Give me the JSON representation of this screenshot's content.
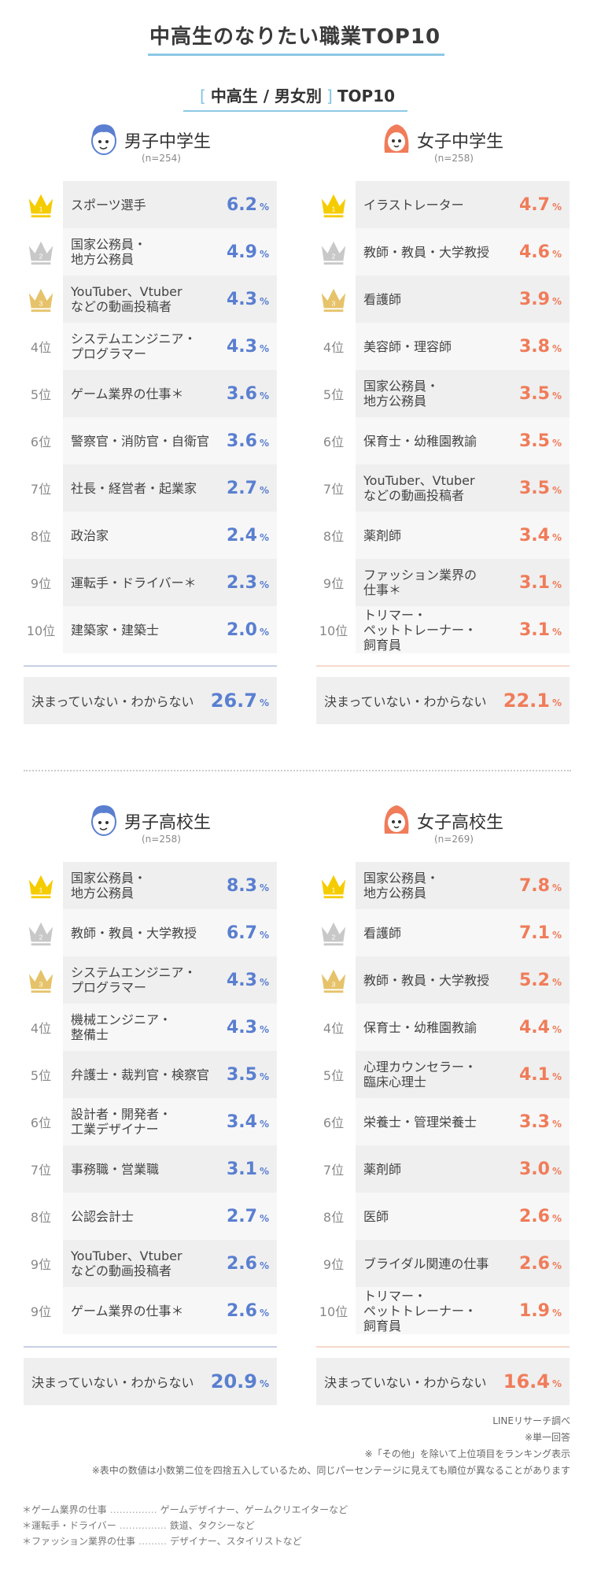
{
  "title": "中高生のなりたい職業TOP10",
  "subtitle": {
    "bracket_open": "[",
    "text": "中高生 / 男女別",
    "bracket_close": "]",
    "suffix": "TOP10"
  },
  "colors": {
    "boys": "#5a7fd0",
    "girls": "#f07c5a",
    "boys_divider": "#c8cfe6",
    "girls_divider": "#f6d9cc",
    "gold": "#f5cc00",
    "silver": "#c8c8c8",
    "bronze": "#e6c36a"
  },
  "sections": [
    {
      "title": "男子中学生",
      "n": "(n=254)",
      "gender": "boys",
      "rows": [
        {
          "rank": "1",
          "label": "スポーツ選手",
          "value": "6.2"
        },
        {
          "rank": "2",
          "label": "国家公務員・\n地方公務員",
          "value": "4.9"
        },
        {
          "rank": "3",
          "label": "YouTuber、Vtuber\nなどの動画投稿者",
          "value": "4.3"
        },
        {
          "rank": "4位",
          "label": "システムエンジニア・\nプログラマー",
          "value": "4.3"
        },
        {
          "rank": "5位",
          "label": "ゲーム業界の仕事＊",
          "value": "3.6"
        },
        {
          "rank": "6位",
          "label": "警察官・消防官・自衛官",
          "value": "3.6"
        },
        {
          "rank": "7位",
          "label": "社長・経営者・起業家",
          "value": "2.7"
        },
        {
          "rank": "8位",
          "label": "政治家",
          "value": "2.4"
        },
        {
          "rank": "9位",
          "label": "運転手・ドライバー＊",
          "value": "2.3"
        },
        {
          "rank": "10位",
          "label": "建築家・建築士",
          "value": "2.0"
        }
      ],
      "summary": {
        "label": "決まっていない・わからない",
        "value": "26.7"
      }
    },
    {
      "title": "女子中学生",
      "n": "(n=258)",
      "gender": "girls",
      "rows": [
        {
          "rank": "1",
          "label": "イラストレーター",
          "value": "4.7"
        },
        {
          "rank": "2",
          "label": "教師・教員・大学教授",
          "value": "4.6"
        },
        {
          "rank": "3",
          "label": "看護師",
          "value": "3.9"
        },
        {
          "rank": "4位",
          "label": "美容師・理容師",
          "value": "3.8"
        },
        {
          "rank": "5位",
          "label": "国家公務員・\n地方公務員",
          "value": "3.5"
        },
        {
          "rank": "6位",
          "label": "保育士・幼稚園教諭",
          "value": "3.5"
        },
        {
          "rank": "7位",
          "label": "YouTuber、Vtuber\nなどの動画投稿者",
          "value": "3.5"
        },
        {
          "rank": "8位",
          "label": "薬剤師",
          "value": "3.4"
        },
        {
          "rank": "9位",
          "label": "ファッション業界の\n仕事＊",
          "value": "3.1"
        },
        {
          "rank": "10位",
          "label": "トリマー・\nペットトレーナー・\n飼育員",
          "value": "3.1"
        }
      ],
      "summary": {
        "label": "決まっていない・わからない",
        "value": "22.1"
      }
    },
    {
      "title": "男子高校生",
      "n": "(n=258)",
      "gender": "boys",
      "rows": [
        {
          "rank": "1",
          "label": "国家公務員・\n地方公務員",
          "value": "8.3"
        },
        {
          "rank": "2",
          "label": "教師・教員・大学教授",
          "value": "6.7"
        },
        {
          "rank": "3",
          "label": "システムエンジニア・\nプログラマー",
          "value": "4.3"
        },
        {
          "rank": "4位",
          "label": "機械エンジニア・\n整備士",
          "value": "4.3"
        },
        {
          "rank": "5位",
          "label": "弁護士・裁判官・検察官",
          "value": "3.5"
        },
        {
          "rank": "6位",
          "label": "設計者・開発者・\n工業デザイナー",
          "value": "3.4"
        },
        {
          "rank": "7位",
          "label": "事務職・営業職",
          "value": "3.1"
        },
        {
          "rank": "8位",
          "label": "公認会計士",
          "value": "2.7"
        },
        {
          "rank": "9位",
          "label": "YouTuber、Vtuber\nなどの動画投稿者",
          "value": "2.6"
        },
        {
          "rank": "9位",
          "label": "ゲーム業界の仕事＊",
          "value": "2.6"
        }
      ],
      "summary": {
        "label": "決まっていない・わからない",
        "value": "20.9"
      }
    },
    {
      "title": "女子高校生",
      "n": "(n=269)",
      "gender": "girls",
      "rows": [
        {
          "rank": "1",
          "label": "国家公務員・\n地方公務員",
          "value": "7.8"
        },
        {
          "rank": "2",
          "label": "看護師",
          "value": "7.1"
        },
        {
          "rank": "3",
          "label": "教師・教員・大学教授",
          "value": "5.2"
        },
        {
          "rank": "4位",
          "label": "保育士・幼稚園教諭",
          "value": "4.4"
        },
        {
          "rank": "5位",
          "label": "心理カウンセラー・\n臨床心理士",
          "value": "4.1"
        },
        {
          "rank": "6位",
          "label": "栄養士・管理栄養士",
          "value": "3.3"
        },
        {
          "rank": "7位",
          "label": "薬剤師",
          "value": "3.0"
        },
        {
          "rank": "8位",
          "label": "医師",
          "value": "2.6"
        },
        {
          "rank": "9位",
          "label": "ブライダル関連の仕事",
          "value": "2.6"
        },
        {
          "rank": "10位",
          "label": "トリマー・\nペットトレーナー・\n飼育員",
          "value": "1.9"
        }
      ],
      "summary": {
        "label": "決まっていない・わからない",
        "value": "16.4"
      }
    }
  ],
  "percent_sign": "%",
  "notes": [
    "LINEリサーチ調べ",
    "※単一回答",
    "※「その他」を除いて上位項目をランキング表示",
    "※表中の数値は小数第二位を四捨五入しているため、同じパーセンテージに見えても順位が異なることがあります"
  ],
  "footnotes": [
    {
      "term": "＊ゲーム業界の仕事",
      "dots": "……………",
      "desc": "ゲームデザイナー、ゲームクリエイターなど"
    },
    {
      "term": "＊運転手・ドライバー",
      "dots": "……………",
      "desc": "鉄道、タクシーなど"
    },
    {
      "term": "＊ファッション業界の仕事",
      "dots": "………",
      "desc": "デザイナー、スタイリストなど"
    }
  ]
}
